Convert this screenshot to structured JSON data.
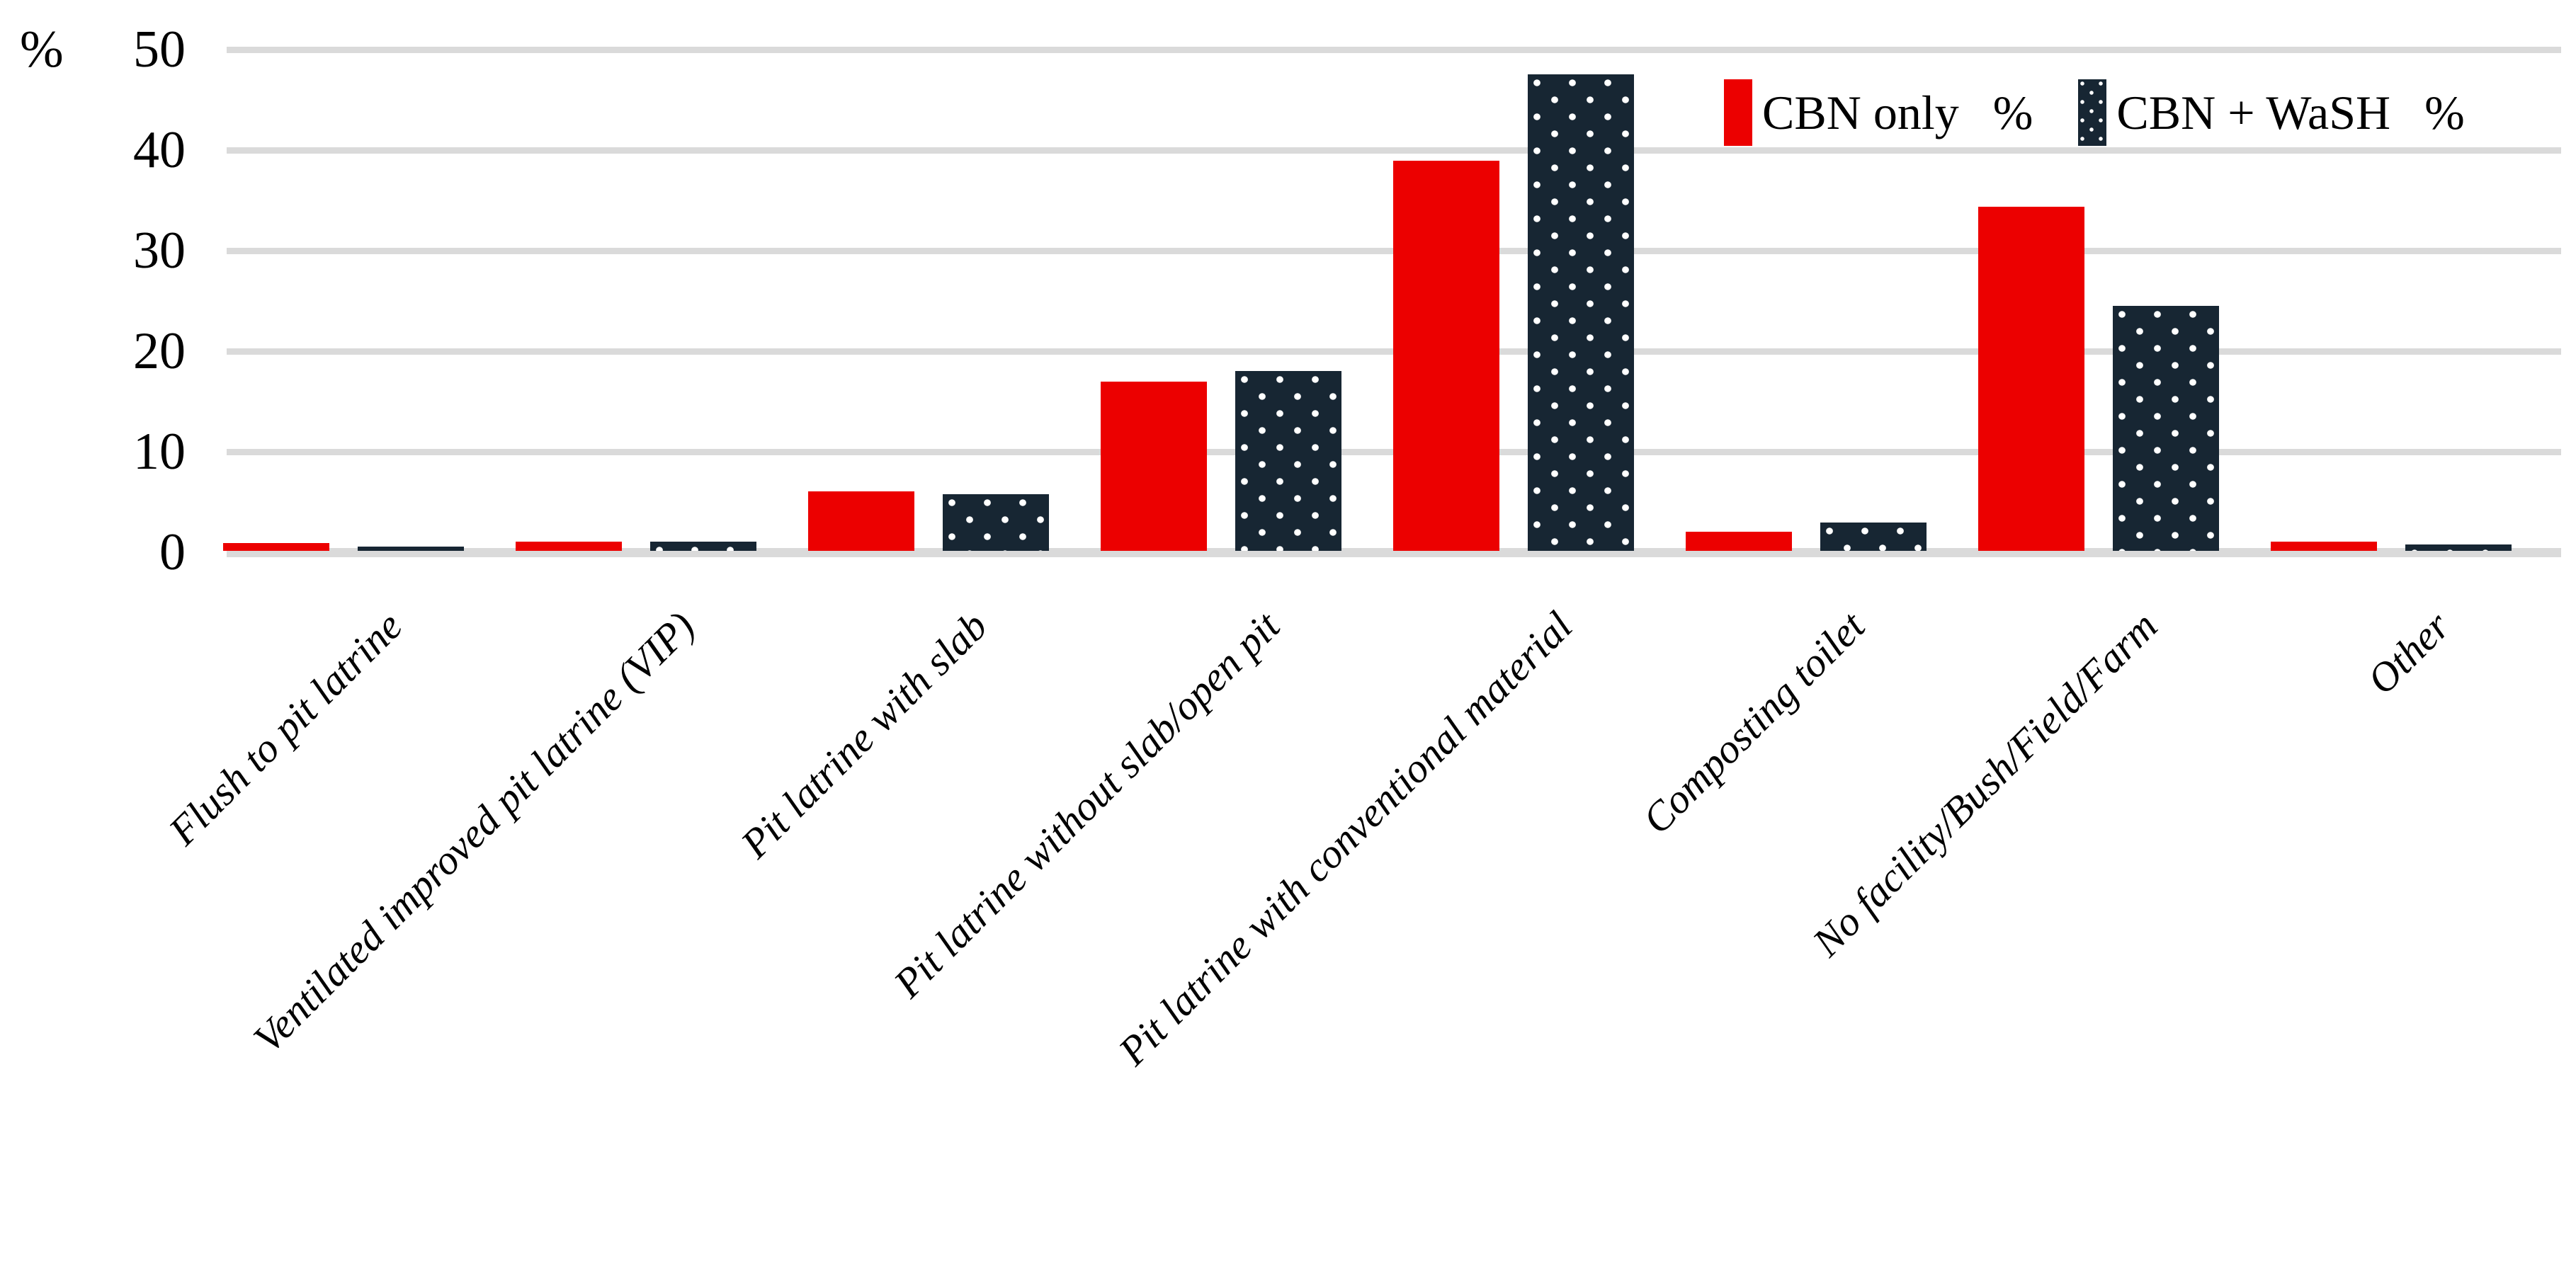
{
  "chart_data": {
    "type": "bar",
    "title": "",
    "y_axis": {
      "unit_label": "%",
      "min": 0,
      "max": 50,
      "tick_interval": 10,
      "ticks": [
        0,
        10,
        20,
        30,
        40,
        50
      ]
    },
    "grid": true,
    "gridline_color": "#DADADA",
    "legend_position": "top-right",
    "categories": [
      "Flush to pit latrine",
      "Ventilated improved pit latrine (VIP)",
      "Pit latrine with slab",
      "Pit latrine without slab/open pit",
      "Pit latrine with conventional material",
      "Composting toilet",
      "No facility/Bush/Field/Farm",
      "Other"
    ],
    "series": [
      {
        "name": "CBN only",
        "unit": "%",
        "color": "#EC0000",
        "pattern": "solid",
        "values": [
          0.8,
          0.9,
          5.9,
          16.8,
          38.8,
          1.9,
          34.2,
          0.9
        ]
      },
      {
        "name": "CBN + WaSH",
        "unit": "%",
        "color": "#172633",
        "pattern": "white-dots",
        "values": [
          0.4,
          0.9,
          5.6,
          17.9,
          47.4,
          2.8,
          24.4,
          0.6
        ]
      }
    ]
  }
}
